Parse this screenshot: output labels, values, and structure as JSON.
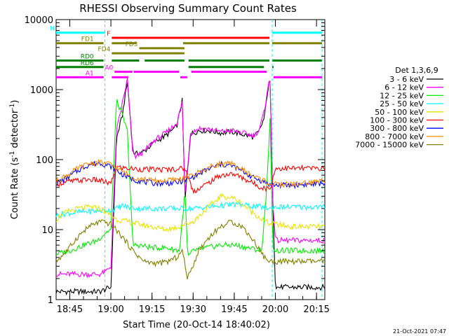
{
  "chart_data": {
    "type": "line",
    "title": "RHESSI Observing Summary Count Rates",
    "xlabel": "Start Time (20-Oct-14 18:40:02)",
    "ylabel_main": "Count Rate (s",
    "ylabel_sup1": "-1",
    "ylabel_mid": " detector",
    "ylabel_sup2": "-1",
    "ylabel_end": ")",
    "y_scale": "log",
    "ylim": [
      1,
      10000
    ],
    "xlim_minutes": [
      0,
      98
    ],
    "x_ticks": [
      {
        "m": 4.97,
        "label": "18:45"
      },
      {
        "m": 19.97,
        "label": "19:00"
      },
      {
        "m": 34.97,
        "label": "19:15"
      },
      {
        "m": 49.97,
        "label": "19:30"
      },
      {
        "m": 64.97,
        "label": "19:45"
      },
      {
        "m": 79.97,
        "label": "20:00"
      },
      {
        "m": 94.97,
        "label": "20:15"
      }
    ],
    "y_ticks": [
      {
        "v": 1,
        "label": "1"
      },
      {
        "v": 10,
        "label": "10"
      },
      {
        "v": 100,
        "label": "100"
      },
      {
        "v": 1000,
        "label": "1000"
      },
      {
        "v": 10000,
        "label": "10000"
      }
    ],
    "legend_title": "Det 1,3,6,9",
    "legend_position": "right",
    "footer": "21-Oct-2021 07:47",
    "series": [
      {
        "name": "3 - 6 keV",
        "color": "#000000",
        "x": [
          0,
          16,
          18,
          20,
          22,
          24,
          26,
          28,
          29,
          32,
          36,
          40,
          44,
          46,
          47,
          49,
          52,
          56,
          60,
          64,
          68,
          72,
          74,
          76,
          77,
          78,
          79,
          80,
          82,
          85,
          90,
          95,
          97
        ],
        "y": [
          1.3,
          1.3,
          1.4,
          1.5,
          200,
          400,
          1300,
          130,
          120,
          130,
          180,
          220,
          300,
          700,
          25,
          230,
          260,
          260,
          240,
          250,
          230,
          210,
          250,
          400,
          900,
          1400,
          30,
          1.5,
          1.5,
          1.5,
          1.5,
          1.5,
          1.5
        ]
      },
      {
        "name": "6 - 12 keV",
        "color": "#ff00ff",
        "x": [
          0,
          16,
          18,
          20,
          22,
          24,
          26,
          28,
          29,
          32,
          36,
          40,
          44,
          46,
          47,
          49,
          52,
          56,
          60,
          64,
          68,
          72,
          74,
          76,
          77,
          78,
          79,
          80,
          82,
          85,
          90,
          95,
          97
        ],
        "y": [
          2.3,
          2.3,
          2.5,
          3,
          250,
          600,
          1400,
          120,
          110,
          130,
          190,
          240,
          330,
          650,
          30,
          240,
          280,
          270,
          250,
          260,
          240,
          220,
          260,
          500,
          1000,
          1400,
          28,
          7,
          7,
          7,
          7,
          7,
          7
        ]
      },
      {
        "name": "12 - 25 keV",
        "color": "#00ee00",
        "x": [
          0,
          5,
          10,
          15,
          18,
          20,
          22,
          24,
          26,
          28,
          30,
          35,
          40,
          45,
          47,
          48,
          50,
          55,
          60,
          65,
          70,
          75,
          77,
          78,
          79,
          80,
          85,
          90,
          95,
          97
        ],
        "y": [
          4.5,
          5,
          6,
          7,
          9,
          10,
          700,
          450,
          250,
          6,
          6,
          5.5,
          5.5,
          5,
          35,
          4,
          5,
          5.5,
          6,
          6,
          5.5,
          5,
          50,
          400,
          6,
          5,
          5,
          5,
          5,
          5
        ]
      },
      {
        "name": "25 - 50 keV",
        "color": "#00ffff",
        "x": [
          0,
          4,
          10,
          15,
          20,
          22,
          24,
          26,
          30,
          35,
          40,
          45,
          47,
          48,
          50,
          55,
          60,
          65,
          70,
          75,
          78,
          79,
          80,
          85,
          90,
          95,
          97
        ],
        "y": [
          16,
          17,
          18,
          18.5,
          19,
          20,
          22,
          21,
          20,
          20,
          20,
          20,
          20,
          20,
          20,
          21,
          22,
          23,
          22,
          21,
          20,
          21,
          21,
          21,
          21,
          21,
          21
        ]
      },
      {
        "name": "50 - 100 keV",
        "color": "#e5e500",
        "x": [
          0,
          4,
          8,
          12,
          16,
          20,
          22,
          26,
          30,
          35,
          40,
          45,
          47,
          50,
          55,
          60,
          65,
          70,
          75,
          78,
          80,
          85,
          90,
          95,
          97
        ],
        "y": [
          14,
          18,
          20,
          21,
          20,
          16,
          14,
          13,
          12,
          11,
          10,
          11,
          12,
          13,
          20,
          30,
          28,
          20,
          14,
          12,
          12,
          11,
          11,
          11,
          11
        ]
      },
      {
        "name": "100 - 300 keV",
        "color": "#ff0000",
        "x": [
          0,
          4,
          8,
          12,
          16,
          20,
          22,
          26,
          30,
          35,
          40,
          45,
          47,
          50,
          55,
          60,
          65,
          70,
          75,
          78,
          80,
          85,
          90,
          95,
          97
        ],
        "y": [
          45,
          48,
          50,
          52,
          50,
          45,
          78,
          75,
          73,
          72,
          72,
          74,
          75,
          35,
          45,
          60,
          62,
          50,
          40,
          38,
          75,
          75,
          75,
          75,
          75
        ]
      },
      {
        "name": "300 - 800 keV",
        "color": "#0000ff",
        "x": [
          0,
          4,
          8,
          12,
          16,
          20,
          24,
          28,
          32,
          36,
          40,
          44,
          48,
          52,
          56,
          60,
          64,
          68,
          72,
          76,
          78,
          80,
          85,
          90,
          95,
          97
        ],
        "y": [
          46,
          55,
          70,
          85,
          90,
          80,
          62,
          52,
          48,
          46,
          46,
          47,
          52,
          62,
          75,
          85,
          82,
          68,
          55,
          48,
          44,
          43,
          43,
          44,
          45,
          46
        ]
      },
      {
        "name": "800 - 7000 keV",
        "color": "#ff8c00",
        "x": [
          0,
          4,
          8,
          12,
          16,
          20,
          24,
          28,
          32,
          36,
          40,
          44,
          48,
          52,
          56,
          60,
          64,
          68,
          72,
          76,
          78,
          80,
          85,
          90,
          95,
          97
        ],
        "y": [
          50,
          60,
          75,
          88,
          92,
          85,
          68,
          56,
          52,
          50,
          50,
          52,
          56,
          66,
          78,
          88,
          86,
          72,
          58,
          50,
          45,
          44,
          44,
          46,
          48,
          50
        ]
      },
      {
        "name": "7000 - 15000 keV",
        "color": "#808000",
        "x": [
          0,
          4,
          8,
          12,
          16,
          20,
          24,
          28,
          32,
          36,
          40,
          44,
          46,
          48,
          52,
          56,
          60,
          64,
          68,
          72,
          76,
          78,
          80,
          85,
          90,
          95,
          97
        ],
        "y": [
          3.5,
          5,
          8,
          11,
          13,
          12,
          8,
          5,
          3.5,
          3.3,
          3.4,
          4,
          5,
          2,
          5,
          8,
          11,
          13,
          11,
          7,
          4,
          3.5,
          3.5,
          3.5,
          3.5,
          3.5,
          3.5
        ]
      }
    ],
    "flag_bars": [
      {
        "label": "N",
        "color": "#00ffff",
        "y": 6500,
        "segments": [
          [
            0,
            17.8
          ],
          [
            78.8,
            97
          ]
        ]
      },
      {
        "label": "F",
        "color": "#ff0000",
        "y": 5500,
        "segments": [
          [
            20.3,
            77.8
          ]
        ]
      },
      {
        "label": "FD1",
        "color": "#808000",
        "y": 4600,
        "segments": [
          [
            0,
            17.3
          ],
          [
            20.3,
            29.3
          ],
          [
            46.3,
            77.8
          ],
          [
            78.8,
            97
          ]
        ]
      },
      {
        "label": "FD3",
        "color": "#808000",
        "y": 3900,
        "segments": [
          [
            30.3,
            46.8
          ]
        ]
      },
      {
        "label": "FD4",
        "color": "#808000",
        "y": 3300,
        "segments": [
          [
            20.3,
            46.8
          ]
        ]
      },
      {
        "label": "RD0",
        "color": "#008000",
        "y": 2600,
        "segments": [
          [
            0,
            17.3
          ],
          [
            20.3,
            30.3
          ],
          [
            32.3,
            46.8
          ],
          [
            48.3,
            77.8
          ],
          [
            78.8,
            97
          ]
        ]
      },
      {
        "label": "RD6",
        "color": "#008000",
        "y": 2100,
        "segments": [
          [
            0,
            17.3
          ],
          [
            48.3,
            75.8
          ],
          [
            78.8,
            79.3
          ]
        ]
      },
      {
        "label": "A0",
        "color": "#ff00ff",
        "y": 1800,
        "segments": [
          [
            21.3,
            27.8
          ],
          [
            28.3,
            44.8
          ],
          [
            49.3,
            76.8
          ]
        ]
      },
      {
        "label": "A1",
        "color": "#ff00ff",
        "y": 1500,
        "segments": [
          [
            0,
            17.3
          ],
          [
            20.3,
            26.3
          ],
          [
            45.3,
            47.8
          ],
          [
            79.3,
            97
          ]
        ]
      }
    ],
    "vertical_markers_minutes": [
      17.8,
      78.8,
      97
    ]
  }
}
